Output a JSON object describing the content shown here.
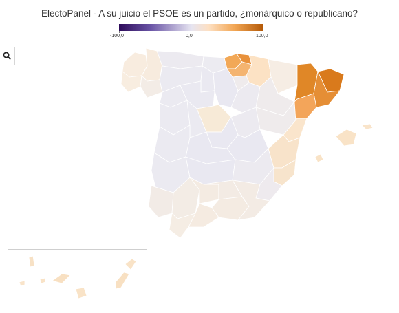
{
  "title": "ElectoPanel - A su juicio el PSOE es un partido, ¿monárquico o republicano?",
  "legend": {
    "min_label": "-100,0",
    "mid_label": "0,0",
    "max_label": "100,0",
    "scale": [
      "#2d0b5a",
      "#6a55a6",
      "#e6e4f1",
      "#fde0c3",
      "#f2a654",
      "#b35806"
    ]
  },
  "search": {
    "icon": "search-icon"
  },
  "colors": {
    "neutral": "#e9e8f0",
    "light_warm": "#f7ece0",
    "warm": "#fbe1c2",
    "orange": "#f4a85a",
    "dark_orange": "#e08a2a",
    "darkest_orange": "#d27516"
  }
}
